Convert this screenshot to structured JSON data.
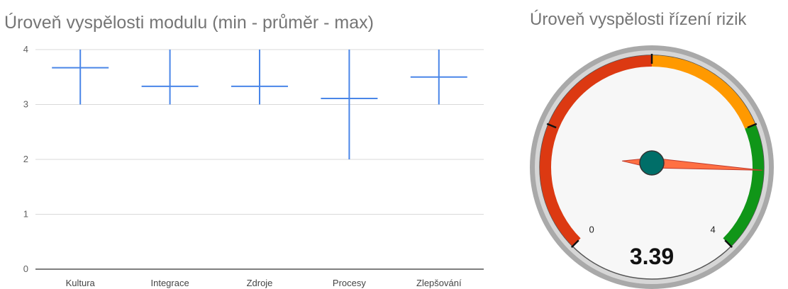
{
  "charts": {
    "range_chart": {
      "title": "Úroveň vyspělosti modulu (min - průměr - max)",
      "y_ticks": [
        "0",
        "1",
        "2",
        "3",
        "4"
      ]
    },
    "gauge": {
      "title": "Úroveň vyspělosti řízení rizik",
      "value_label": "3.39",
      "min_label": "0",
      "max_label": "4"
    }
  },
  "chart_data": [
    {
      "type": "candlestick",
      "title": "Úroveň vyspělosti modulu (min - průměr - max)",
      "categories": [
        "Kultura",
        "Integrace",
        "Zdroje",
        "Procesy",
        "Zlepšování"
      ],
      "min": [
        3,
        3,
        3,
        2,
        3
      ],
      "mean": [
        3.67,
        3.33,
        3.33,
        3.11,
        3.5
      ],
      "max": [
        4,
        4,
        4,
        4,
        4
      ],
      "ylim": [
        0,
        4
      ],
      "y_ticks": [
        0,
        1,
        2,
        3,
        4
      ],
      "grid": true,
      "color": "#4a86e8"
    },
    {
      "type": "gauge",
      "title": "Úroveň vyspělosti řízení rizik",
      "value": 3.39,
      "min": 0,
      "max": 4,
      "bands": [
        {
          "from": 0,
          "to": 2,
          "color": "#dc3912"
        },
        {
          "from": 2,
          "to": 3,
          "color": "#ff9900"
        },
        {
          "from": 3,
          "to": 4,
          "color": "#109618"
        }
      ],
      "major_ticks": [
        0,
        1,
        2,
        3,
        4
      ]
    }
  ]
}
